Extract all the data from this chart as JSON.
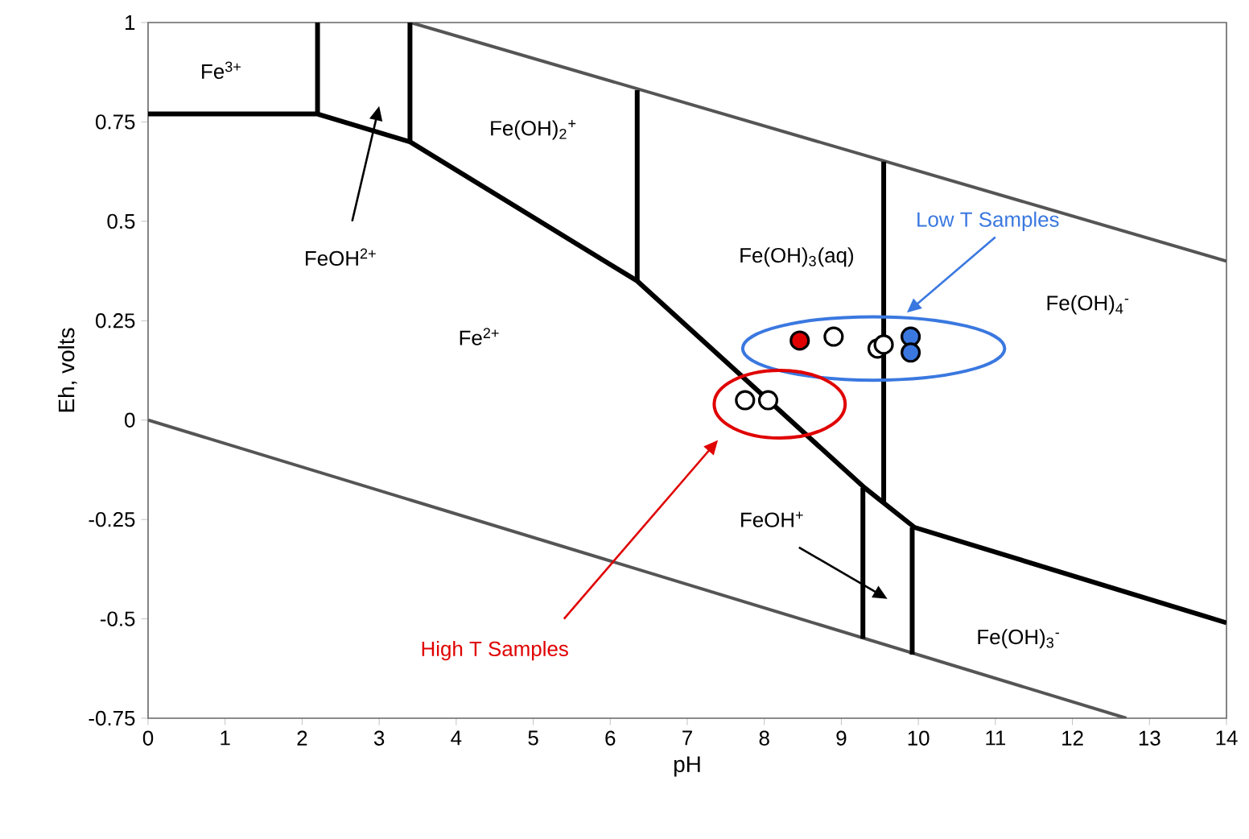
{
  "chart_data": {
    "type": "line",
    "xlabel": "pH",
    "ylabel": "Eh, volts",
    "xlim": [
      0,
      14
    ],
    "ylim": [
      -0.75,
      1
    ],
    "xticks": [
      0,
      1,
      2,
      3,
      4,
      5,
      6,
      7,
      8,
      9,
      10,
      11,
      12,
      13,
      14
    ],
    "yticks": [
      -0.75,
      -0.5,
      -0.25,
      0,
      0.25,
      0.5,
      0.75,
      1
    ],
    "grid": false,
    "series": [
      {
        "color": "#555555",
        "x": [
          3.41,
          14
        ],
        "values": [
          1,
          0.4
        ]
      },
      {
        "color": "#555555",
        "x": [
          0,
          12.7
        ],
        "values": [
          0,
          -0.75
        ]
      },
      {
        "color": "#000000",
        "x": [
          0,
          2.2,
          3.4,
          6.35,
          9.3,
          9.95,
          14
        ],
        "values": [
          0.77,
          0.77,
          0.7,
          0.35,
          -0.17,
          -0.27,
          -0.51
        ]
      },
      {
        "color": "#000000",
        "x": [
          2.2,
          2.2
        ],
        "values": [
          0.77,
          1
        ]
      },
      {
        "color": "#000000",
        "x": [
          3.4,
          3.4
        ],
        "values": [
          0.7,
          1
        ]
      },
      {
        "color": "#000000",
        "x": [
          6.35,
          6.35
        ],
        "values": [
          0.35,
          0.83
        ]
      },
      {
        "color": "#000000",
        "x": [
          9.55,
          9.55
        ],
        "values": [
          -0.21,
          0.65
        ]
      },
      {
        "color": "#000000",
        "x": [
          9.28,
          9.28
        ],
        "values": [
          -0.17,
          -0.55
        ]
      },
      {
        "color": "#000000",
        "x": [
          9.92,
          9.92
        ],
        "values": [
          -0.27,
          -0.59
        ]
      },
      {
        "type": "scatter",
        "marker": "circle",
        "color": "#e00000",
        "x": [
          8.46
        ],
        "values": [
          0.2
        ]
      },
      {
        "type": "scatter",
        "marker": "circle",
        "color": "#ffffff",
        "x": [
          8.9,
          9.47,
          9.55,
          7.75,
          8.05
        ],
        "values": [
          0.21,
          0.18,
          0.19,
          0.05,
          0.05
        ]
      },
      {
        "type": "scatter",
        "marker": "circle",
        "color": "#3a78e0",
        "x": [
          9.9,
          9.9
        ],
        "values": [
          0.21,
          0.17
        ]
      }
    ],
    "annotations": [
      "Fe$^{3+}$",
      "FeOH$^{2+}$",
      "Fe(OH)$_{2}$$^{+}$",
      "Fe(OH)$_{3}$(aq)",
      "Fe(OH)$_{4}$$^{-}$",
      "Fe$^{2+}$",
      "FeOH$^{+}$",
      "Fe(OH)$_{3}$$^{-}$",
      "Low T Samples",
      "High T Samples"
    ]
  }
}
